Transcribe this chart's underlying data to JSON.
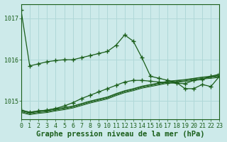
{
  "background_color": "#cdeaea",
  "grid_color": "#b0d8d8",
  "line_color": "#1a5e1a",
  "xlabel": "Graphe pression niveau de la mer (hPa)",
  "xlabel_fontsize": 7.5,
  "tick_fontsize": 6,
  "ytick_labels": [
    1015,
    1016,
    1017
  ],
  "ylim": [
    1014.55,
    1017.35
  ],
  "xlim": [
    0,
    23
  ],
  "hours": [
    0,
    1,
    2,
    3,
    4,
    5,
    6,
    7,
    8,
    9,
    10,
    11,
    12,
    13,
    14,
    15,
    16,
    17,
    18,
    19,
    20,
    21,
    22,
    23
  ],
  "series": [
    {
      "values": [
        1017.2,
        1015.85,
        1015.9,
        1015.95,
        1015.98,
        1016.0,
        1016.0,
        1016.05,
        1016.1,
        1016.15,
        1016.2,
        1016.35,
        1016.6,
        1016.45,
        1016.05,
        1015.6,
        1015.55,
        1015.5,
        1015.45,
        1015.3,
        1015.3,
        1015.4,
        1015.35,
        1015.6
      ],
      "has_markers": true
    },
    {
      "values": [
        1014.78,
        1014.73,
        1014.76,
        1014.78,
        1014.82,
        1014.84,
        1014.88,
        1014.94,
        1015.0,
        1015.05,
        1015.1,
        1015.18,
        1015.25,
        1015.3,
        1015.36,
        1015.4,
        1015.44,
        1015.48,
        1015.5,
        1015.52,
        1015.55,
        1015.58,
        1015.6,
        1015.62
      ],
      "has_markers": false
    },
    {
      "values": [
        1014.76,
        1014.71,
        1014.74,
        1014.76,
        1014.8,
        1014.83,
        1014.87,
        1014.93,
        1014.99,
        1015.04,
        1015.09,
        1015.17,
        1015.24,
        1015.29,
        1015.35,
        1015.39,
        1015.43,
        1015.47,
        1015.49,
        1015.51,
        1015.54,
        1015.57,
        1015.59,
        1015.61
      ],
      "has_markers": false
    },
    {
      "values": [
        1014.74,
        1014.69,
        1014.72,
        1014.74,
        1014.78,
        1014.81,
        1014.85,
        1014.91,
        1014.97,
        1015.02,
        1015.07,
        1015.15,
        1015.22,
        1015.27,
        1015.33,
        1015.37,
        1015.41,
        1015.45,
        1015.47,
        1015.49,
        1015.52,
        1015.55,
        1015.57,
        1015.59
      ],
      "has_markers": false
    },
    {
      "values": [
        1014.72,
        1014.67,
        1014.7,
        1014.72,
        1014.76,
        1014.79,
        1014.83,
        1014.89,
        1014.95,
        1015.0,
        1015.05,
        1015.13,
        1015.2,
        1015.25,
        1015.31,
        1015.35,
        1015.39,
        1015.43,
        1015.45,
        1015.47,
        1015.5,
        1015.53,
        1015.55,
        1015.57
      ],
      "has_markers": false
    },
    {
      "values": [
        1014.78,
        1014.73,
        1014.76,
        1014.78,
        1014.82,
        1014.88,
        1014.96,
        1015.06,
        1015.14,
        1015.22,
        1015.3,
        1015.38,
        1015.46,
        1015.5,
        1015.5,
        1015.48,
        1015.46,
        1015.44,
        1015.43,
        1015.42,
        1015.5,
        1015.52,
        1015.6,
        1015.65
      ],
      "has_markers": true
    }
  ]
}
